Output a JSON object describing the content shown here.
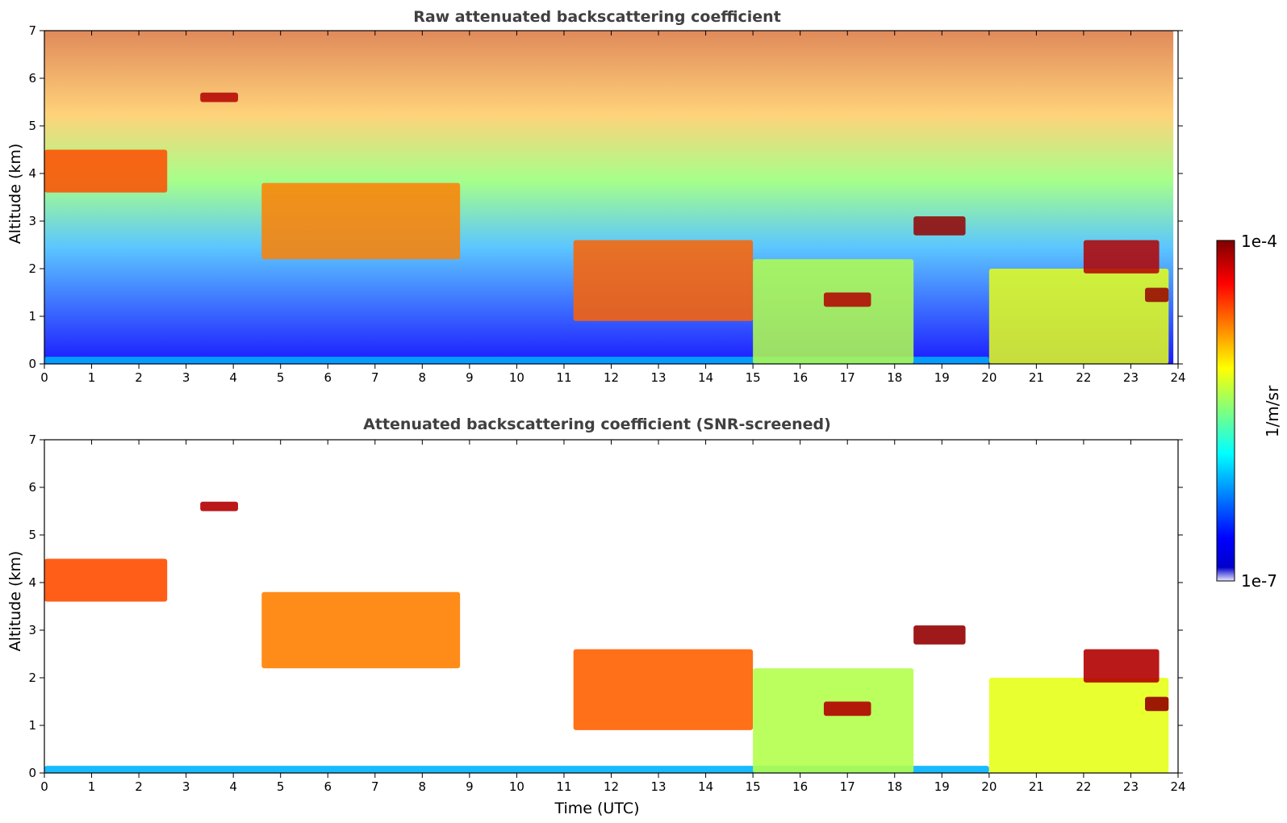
{
  "chart_data": [
    {
      "type": "heatmap",
      "title": "Raw attenuated backscattering coefficient",
      "xlabel": "",
      "ylabel": "Altitude (km)",
      "xlim": [
        0,
        24
      ],
      "ylim": [
        0,
        7
      ],
      "xticks": [
        "0",
        "1",
        "2",
        "3",
        "4",
        "5",
        "6",
        "7",
        "8",
        "9",
        "10",
        "11",
        "12",
        "13",
        "14",
        "15",
        "16",
        "17",
        "18",
        "19",
        "20",
        "21",
        "22",
        "23",
        "24"
      ],
      "yticks": [
        "0",
        "1",
        "2",
        "3",
        "4",
        "5",
        "6",
        "7"
      ],
      "grid": false,
      "layers": [
        {
          "name": "surface layer",
          "t0": 0,
          "t1": 20.0,
          "z0": 0,
          "z1": 0.15,
          "level": 0.3
        },
        {
          "name": "elevated layer 4 km",
          "t0": 0.0,
          "t1": 2.6,
          "z0": 3.6,
          "z1": 4.5,
          "level": 0.8
        },
        {
          "name": "cloud 5.6 km",
          "t0": 3.3,
          "t1": 4.1,
          "z0": 5.5,
          "z1": 5.7,
          "level": 0.95
        },
        {
          "name": "descending layer",
          "t0": 4.6,
          "t1": 8.8,
          "z0": 2.2,
          "z1": 3.8,
          "level": 0.75
        },
        {
          "name": "boundary layer growth",
          "t0": 11.2,
          "t1": 15.0,
          "z0": 0.9,
          "z1": 2.6,
          "level": 0.78
        },
        {
          "name": "afternoon clouds",
          "t0": 15.0,
          "t1": 18.4,
          "z0": 0.0,
          "z1": 2.2,
          "level": 0.55
        },
        {
          "name": "cloud 1.3 km",
          "t0": 16.5,
          "t1": 17.5,
          "z0": 1.2,
          "z1": 1.5,
          "level": 0.95
        },
        {
          "name": "cloud 3 km",
          "t0": 18.4,
          "t1": 19.5,
          "z0": 2.7,
          "z1": 3.1,
          "level": 0.98
        },
        {
          "name": "evening layer",
          "t0": 20.0,
          "t1": 23.8,
          "z0": 0.0,
          "z1": 2.0,
          "level": 0.6
        },
        {
          "name": "cloud 2.3 km",
          "t0": 22.0,
          "t1": 23.6,
          "z0": 1.9,
          "z1": 2.6,
          "level": 0.95
        },
        {
          "name": "cloud 1.5 km",
          "t0": 23.3,
          "t1": 23.8,
          "z0": 1.3,
          "z1": 1.6,
          "level": 0.98
        }
      ]
    },
    {
      "type": "heatmap",
      "title": "Attenuated backscattering coefficient (SNR-screened)",
      "xlabel": "Time (UTC)",
      "ylabel": "Altitude (km)",
      "xlim": [
        0,
        24
      ],
      "ylim": [
        0,
        7
      ],
      "xticks": [
        "0",
        "1",
        "2",
        "3",
        "4",
        "5",
        "6",
        "7",
        "8",
        "9",
        "10",
        "11",
        "12",
        "13",
        "14",
        "15",
        "16",
        "17",
        "18",
        "19",
        "20",
        "21",
        "22",
        "23",
        "24"
      ],
      "yticks": [
        "0",
        "1",
        "2",
        "3",
        "4",
        "5",
        "6",
        "7"
      ],
      "grid": false
    }
  ],
  "colorbar": {
    "label": "1/m/sr",
    "max_label": "1e-4",
    "min_label": "1e-7",
    "colormap": "jet",
    "scale": "log"
  },
  "colors": {
    "low": "#00007f",
    "mid": "#7fff7f",
    "high": "#7f0000",
    "title": "#404040"
  }
}
